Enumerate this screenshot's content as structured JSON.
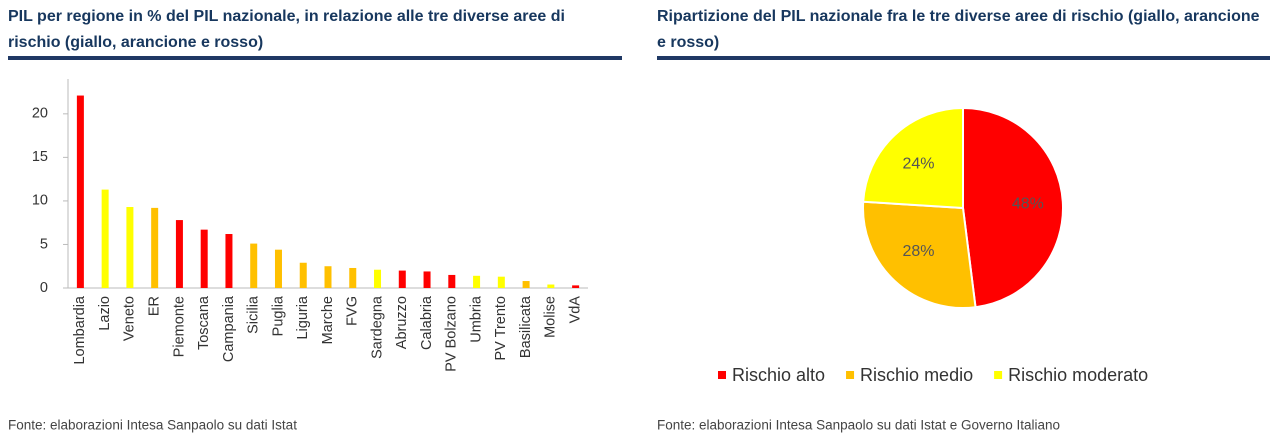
{
  "chart_data": [
    {
      "type": "bar",
      "title": "PIL per regione in % del PIL nazionale, in relazione alle tre diverse aree di rischio (giallo, arancione e rosso)",
      "source": "Fonte: elaborazioni Intesa Sanpaolo su dati Istat",
      "categories": [
        "Lombardia",
        "Lazio",
        "Veneto",
        "ER",
        "Piemonte",
        "Toscana",
        "Campania",
        "Sicilia",
        "Puglia",
        "Liguria",
        "Marche",
        "FVG",
        "Sardegna",
        "Abruzzo",
        "Calabria",
        "PV Bolzano",
        "Umbria",
        "PV Trento",
        "Basilicata",
        "Molise",
        "VdA"
      ],
      "values": [
        22.1,
        11.3,
        9.3,
        9.2,
        7.8,
        6.7,
        6.2,
        5.1,
        4.4,
        2.9,
        2.5,
        2.3,
        2.1,
        2.0,
        1.9,
        1.5,
        1.4,
        1.3,
        0.8,
        0.4,
        0.3
      ],
      "colors": [
        "#ff0000",
        "#ffff00",
        "#ffff00",
        "#ffc000",
        "#ff0000",
        "#ff0000",
        "#ff0000",
        "#ffc000",
        "#ffc000",
        "#ffc000",
        "#ffc000",
        "#ffc000",
        "#ffff00",
        "#ff0000",
        "#ff0000",
        "#ff0000",
        "#ffff00",
        "#ffff00",
        "#ffc000",
        "#ffff00",
        "#ff0000"
      ],
      "ylim": [
        0,
        24
      ],
      "yticks": [
        0,
        5,
        10,
        15,
        20
      ],
      "grid": false
    },
    {
      "type": "pie",
      "title": "Ripartizione del PIL nazionale fra le tre diverse aree di rischio (giallo, arancione e rosso)",
      "source": "Fonte: elaborazioni Intesa Sanpaolo su dati Istat e Governo Italiano",
      "categories": [
        "Rischio alto",
        "Rischio medio",
        "Rischio moderato"
      ],
      "values": [
        48,
        28,
        24
      ],
      "value_labels": [
        "48%",
        "28%",
        "24%"
      ],
      "colors": [
        "#ff0000",
        "#ffc000",
        "#ffff00"
      ],
      "legend": "bottom"
    }
  ]
}
